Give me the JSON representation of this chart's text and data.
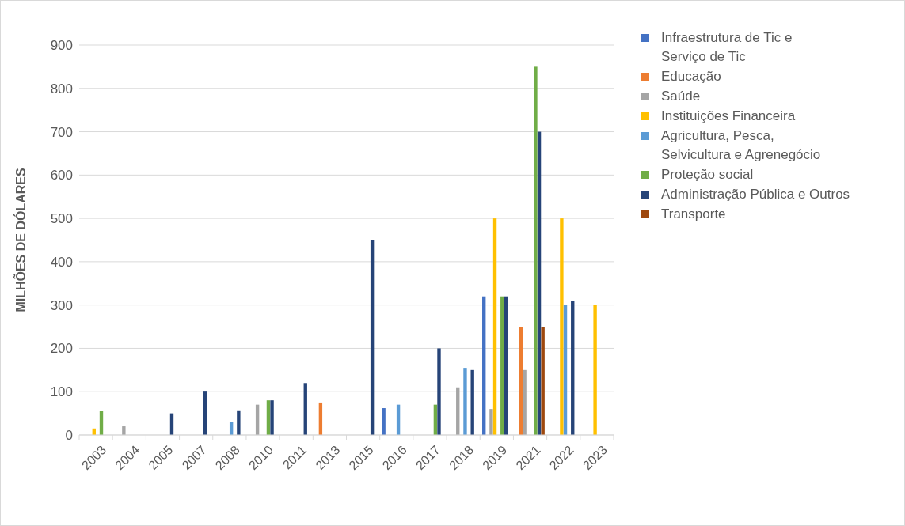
{
  "chart_data": {
    "type": "bar",
    "ylabel": "MILHÕES DE DÓLARES",
    "categories": [
      "2003",
      "2004",
      "2005",
      "2007",
      "2008",
      "2010",
      "2011",
      "2013",
      "2015",
      "2016",
      "2017",
      "2018",
      "2019",
      "2021",
      "2022",
      "2023"
    ],
    "series": [
      {
        "name": "Infraestrutura de Tic e Serviço de Tic",
        "color": "#4472c4",
        "values": [
          null,
          null,
          null,
          null,
          null,
          null,
          null,
          null,
          null,
          62,
          null,
          null,
          320,
          null,
          null,
          null
        ]
      },
      {
        "name": "Educação",
        "color": "#ed7d31",
        "values": [
          null,
          null,
          null,
          null,
          null,
          null,
          null,
          75,
          null,
          null,
          null,
          null,
          null,
          250,
          null,
          null
        ]
      },
      {
        "name": "Saúde",
        "color": "#a5a5a5",
        "values": [
          null,
          20,
          null,
          null,
          null,
          70,
          null,
          null,
          null,
          null,
          null,
          110,
          60,
          150,
          null,
          null
        ]
      },
      {
        "name": "Instituições Financeira",
        "color": "#ffc000",
        "values": [
          15,
          null,
          null,
          null,
          null,
          null,
          null,
          null,
          null,
          null,
          null,
          null,
          500,
          null,
          500,
          300
        ]
      },
      {
        "name": "Agricultura, Pesca, Selvicultura e Agrenegócio",
        "color": "#5b9bd5",
        "values": [
          null,
          null,
          null,
          null,
          30,
          null,
          null,
          null,
          null,
          70,
          null,
          155,
          null,
          null,
          300,
          null
        ]
      },
      {
        "name": "Proteção social",
        "color": "#70ad47",
        "values": [
          55,
          null,
          null,
          null,
          null,
          80,
          null,
          null,
          null,
          null,
          70,
          null,
          320,
          850,
          null,
          null
        ]
      },
      {
        "name": "Administração Pública e Outros",
        "color": "#264478",
        "values": [
          null,
          null,
          50,
          102,
          57,
          80,
          120,
          null,
          450,
          null,
          200,
          150,
          320,
          700,
          310,
          null
        ]
      },
      {
        "name": "Transporte",
        "color": "#9e480e",
        "values": [
          null,
          null,
          null,
          null,
          null,
          null,
          null,
          null,
          null,
          null,
          null,
          null,
          null,
          250,
          null,
          null
        ]
      }
    ],
    "ylim": [
      0,
      900
    ],
    "yticks": [
      0,
      100,
      200,
      300,
      400,
      500,
      600,
      700,
      800,
      900
    ],
    "grid": "y",
    "legend": "right"
  }
}
